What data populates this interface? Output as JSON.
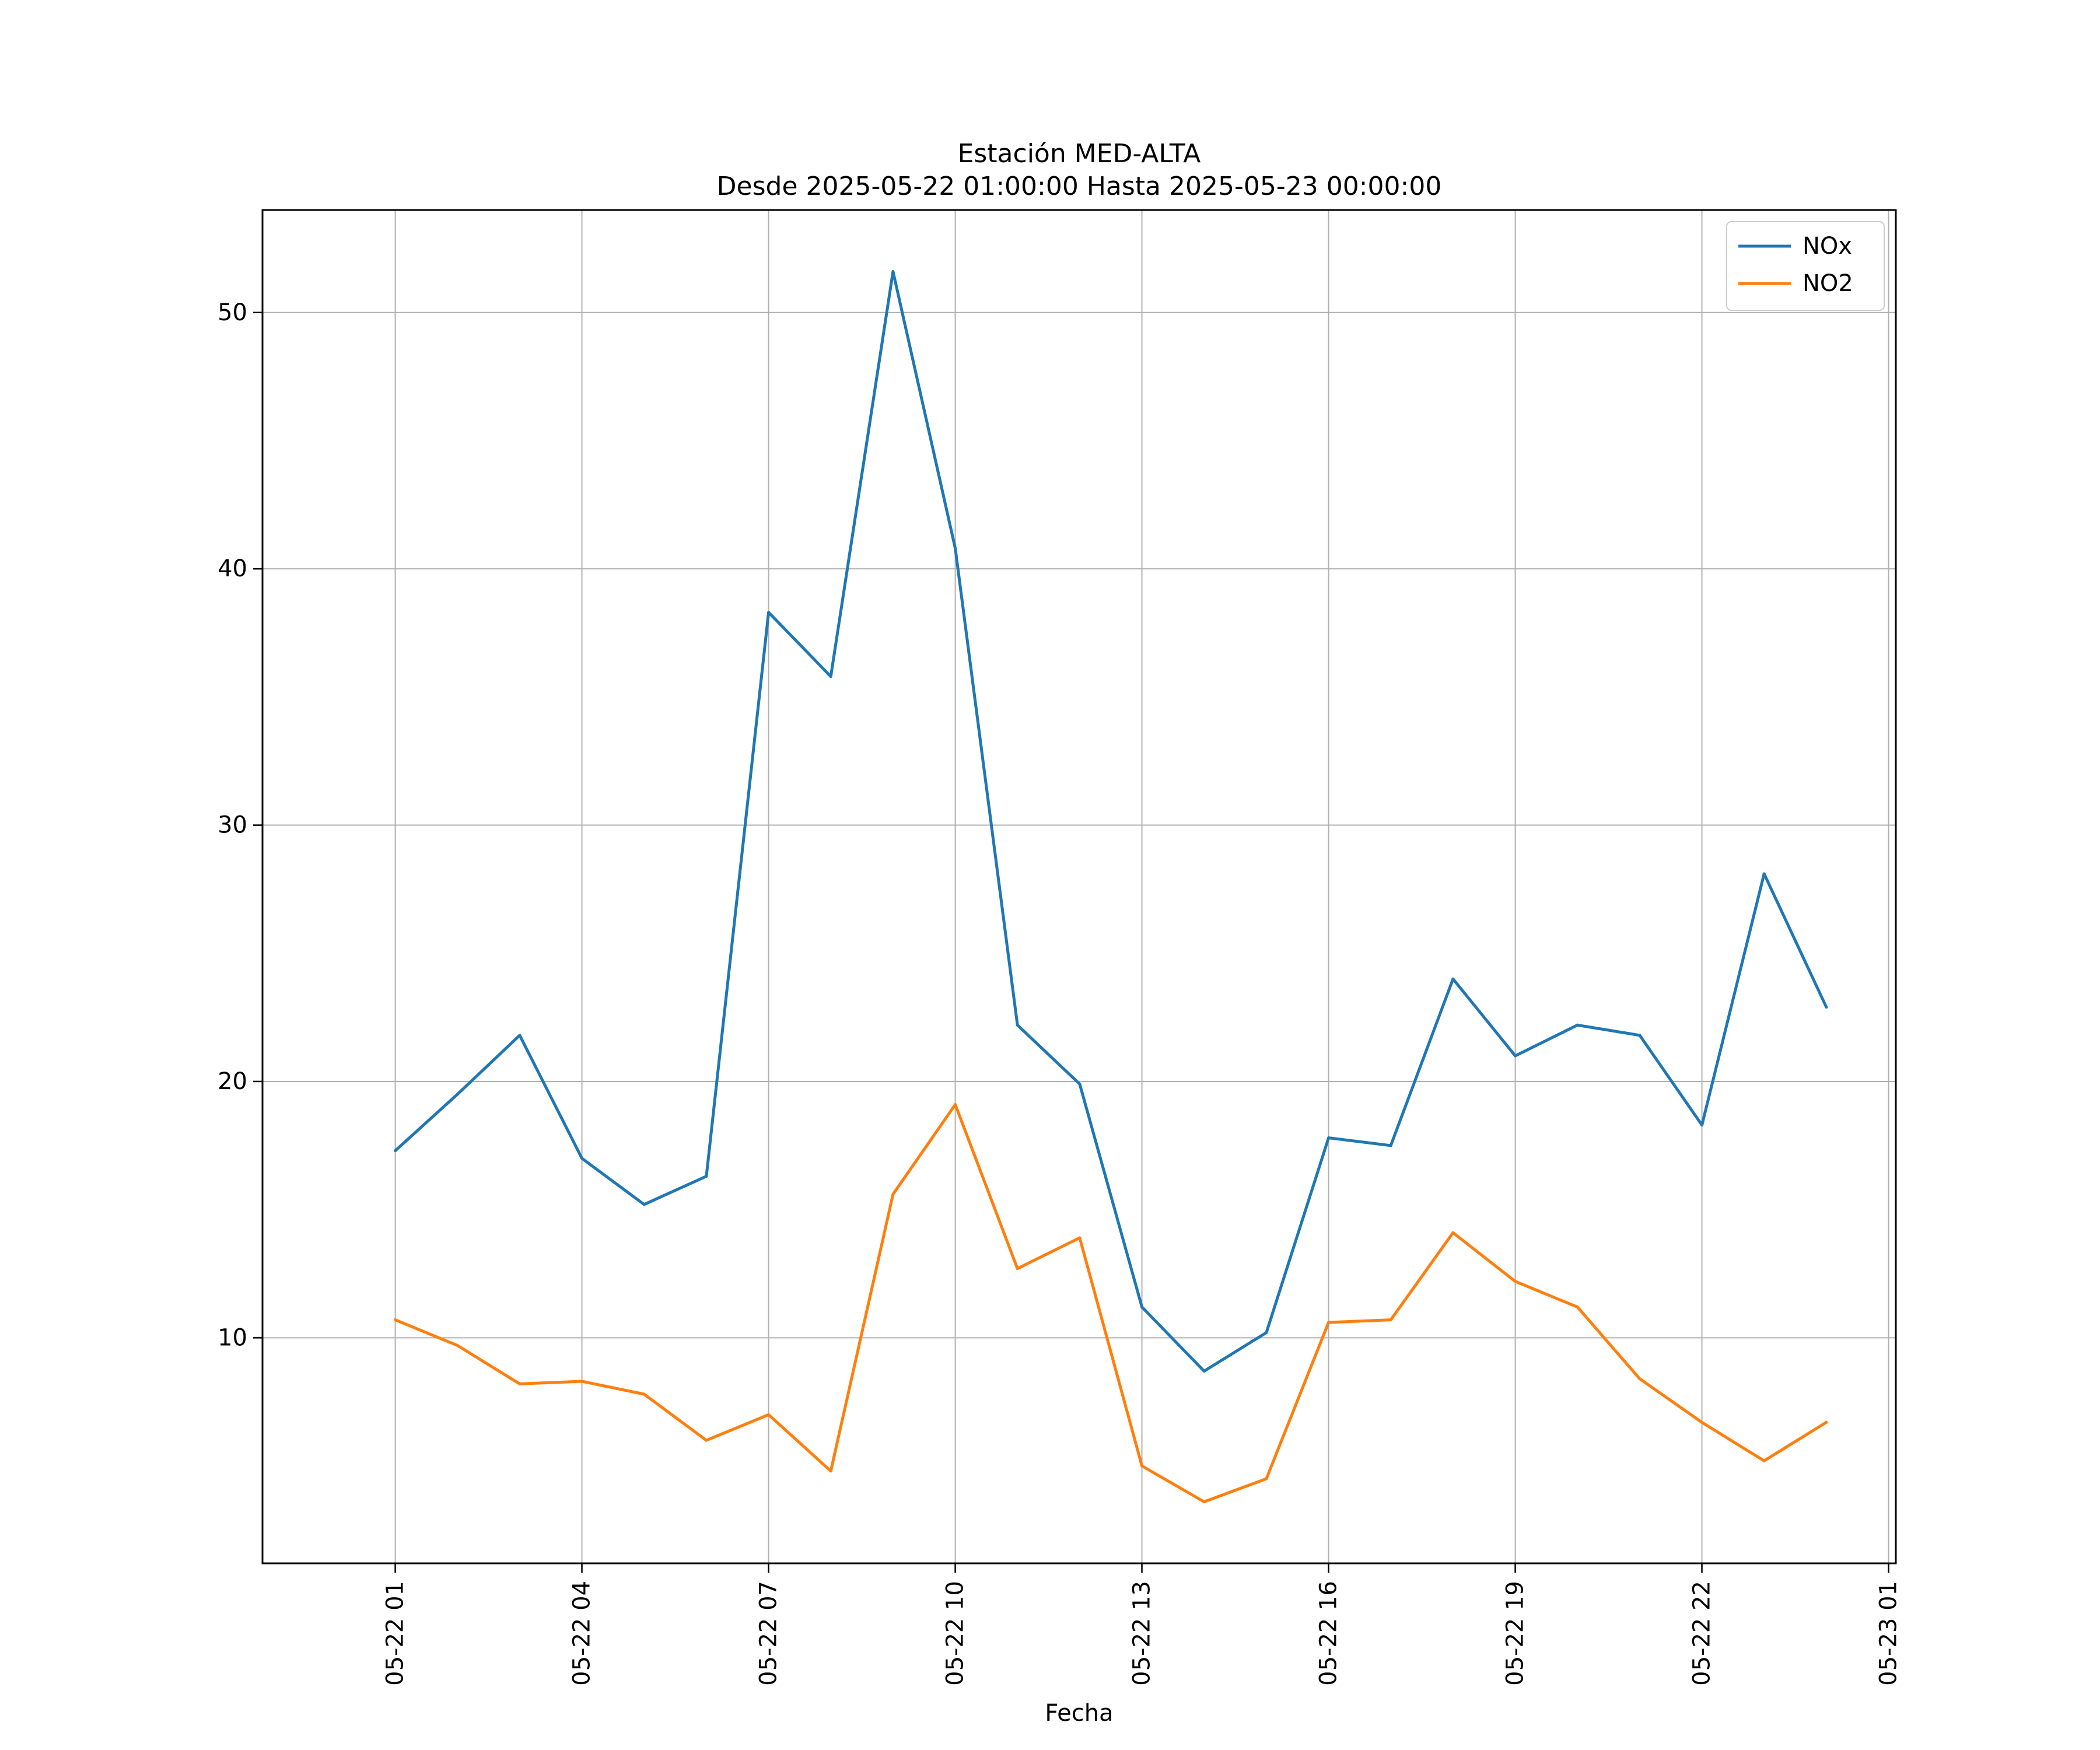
{
  "chart_data": {
    "type": "line",
    "title": "Estación MED-ALTA",
    "subtitle": "Desde 2025-05-22 01:00:00 Hasta 2025-05-23 00:00:00",
    "xlabel": "Fecha",
    "ylabel": "",
    "x": [
      "2025-05-22 01:00",
      "2025-05-22 02:00",
      "2025-05-22 03:00",
      "2025-05-22 04:00",
      "2025-05-22 05:00",
      "2025-05-22 06:00",
      "2025-05-22 07:00",
      "2025-05-22 08:00",
      "2025-05-22 09:00",
      "2025-05-22 10:00",
      "2025-05-22 11:00",
      "2025-05-22 12:00",
      "2025-05-22 13:00",
      "2025-05-22 14:00",
      "2025-05-22 15:00",
      "2025-05-22 16:00",
      "2025-05-22 17:00",
      "2025-05-22 18:00",
      "2025-05-22 19:00",
      "2025-05-22 20:00",
      "2025-05-22 21:00",
      "2025-05-22 22:00",
      "2025-05-22 23:00",
      "2025-05-23 00:00"
    ],
    "xlim": [
      "2025-05-21 22:52",
      "2025-05-23 01:07"
    ],
    "xticks": [
      "2025-05-22 01:00",
      "2025-05-22 04:00",
      "2025-05-22 07:00",
      "2025-05-22 10:00",
      "2025-05-22 13:00",
      "2025-05-22 16:00",
      "2025-05-22 19:00",
      "2025-05-22 22:00",
      "2025-05-23 01:00"
    ],
    "xtick_labels": [
      "05-22 01",
      "05-22 04",
      "05-22 07",
      "05-22 10",
      "05-22 13",
      "05-22 16",
      "05-22 19",
      "05-22 22",
      "05-23 01"
    ],
    "ylim": [
      1.2,
      54.0
    ],
    "yticks": [
      10,
      20,
      30,
      40,
      50
    ],
    "grid": true,
    "legend_position": "top-right",
    "series": [
      {
        "name": "NOx",
        "color": "#1f77b4",
        "values": [
          17.3,
          19.5,
          21.8,
          17.0,
          15.2,
          16.3,
          38.3,
          35.8,
          51.6,
          40.8,
          22.2,
          19.9,
          11.2,
          8.7,
          10.2,
          17.8,
          17.5,
          24.0,
          21.0,
          22.2,
          21.8,
          18.3,
          28.1,
          22.9
        ]
      },
      {
        "name": "NO2",
        "color": "#ff7f0e",
        "values": [
          10.7,
          9.7,
          8.2,
          8.3,
          7.8,
          6.0,
          7.0,
          4.8,
          15.6,
          19.1,
          12.7,
          13.9,
          5.0,
          3.6,
          4.5,
          10.6,
          10.7,
          14.1,
          12.2,
          11.2,
          8.4,
          6.7,
          5.2,
          6.7
        ]
      }
    ]
  }
}
